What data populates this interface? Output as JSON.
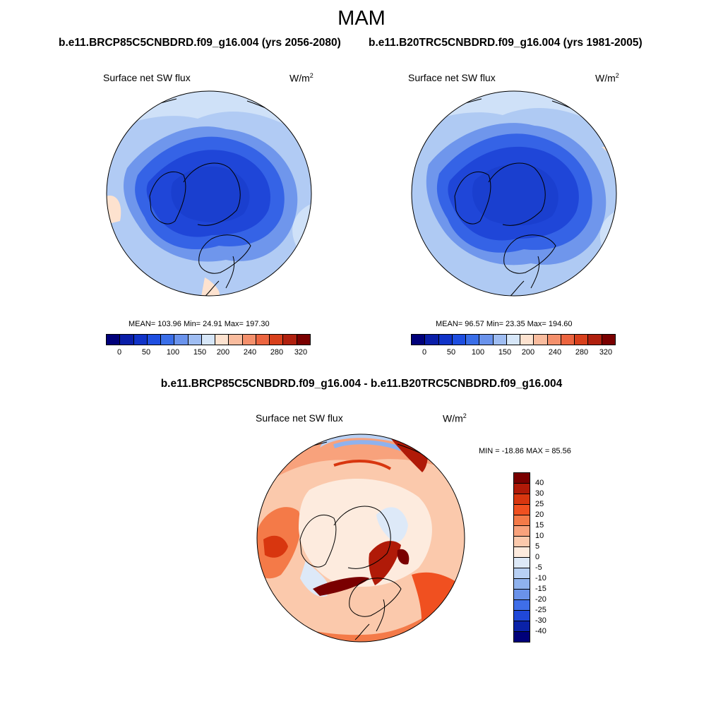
{
  "title": "MAM",
  "panels": [
    {
      "case_title": "b.e11.BRCP85C5CNBDRD.f09_g16.004 (yrs 2056-2080)",
      "variable": "Surface net SW flux",
      "units_base": "W/m",
      "units_sup": "2",
      "stats_text": "MEAN= 103.96  Min=  24.91  Max= 197.30",
      "stats": {
        "mean": 103.96,
        "min": 24.91,
        "max": 197.3
      }
    },
    {
      "case_title": "b.e11.B20TRC5CNBDRD.f09_g16.004 (yrs 1981-2005)",
      "variable": "Surface net SW flux",
      "units_base": "W/m",
      "units_sup": "2",
      "stats_text": "MEAN=  96.57  Min=  23.35  Max= 194.60",
      "stats": {
        "mean": 96.57,
        "min": 23.35,
        "max": 194.6
      }
    }
  ],
  "abs_colorbar": {
    "tick_labels": [
      "0",
      "50",
      "100",
      "150",
      "200",
      "240",
      "280",
      "320"
    ],
    "colors": [
      "#00007a",
      "#0a1ea8",
      "#1033c8",
      "#1e4ee0",
      "#3a6ee8",
      "#6a93ec",
      "#9fbdf2",
      "#d6e6f8",
      "#fde2cf",
      "#f9bc9e",
      "#f4906c",
      "#ec6540",
      "#d8401c",
      "#b0200e",
      "#7a0000"
    ]
  },
  "diff": {
    "title": "b.e11.BRCP85C5CNBDRD.f09_g16.004 - b.e11.B20TRC5CNBDRD.f09_g16.004",
    "variable": "Surface net SW flux",
    "units_base": "W/m",
    "units_sup": "2",
    "minmax_text": "MIN = -18.86 MAX =  85.56",
    "stats": {
      "min": -18.86,
      "max": 85.56
    },
    "colorbar": {
      "tick_labels": [
        "40",
        "30",
        "25",
        "20",
        "15",
        "10",
        "5",
        "0",
        "-5",
        "-10",
        "-15",
        "-20",
        "-25",
        "-30",
        "-40"
      ],
      "colors": [
        "#7a0000",
        "#b01a08",
        "#d8360f",
        "#f05020",
        "#f47a48",
        "#f8a27c",
        "#fbc9ac",
        "#fdebde",
        "#dde9f8",
        "#b8d0f4",
        "#8fb2ee",
        "#6a92ea",
        "#3f6ee8",
        "#2048d8",
        "#0a22a8",
        "#00007a"
      ]
    }
  }
}
